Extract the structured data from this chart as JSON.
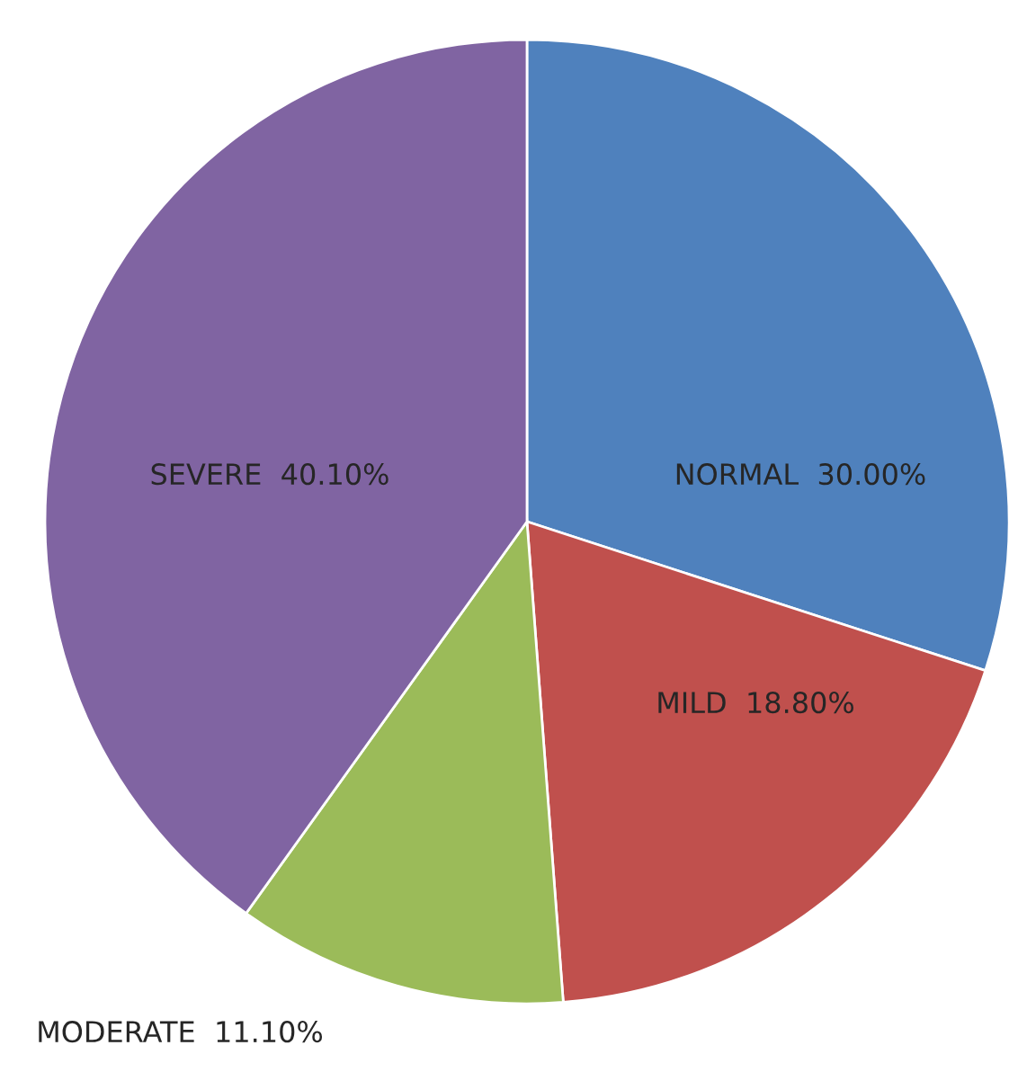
{
  "chart_data": {
    "type": "pie",
    "categories": [
      "NORMAL",
      "MILD",
      "MODERATE",
      "SEVERE"
    ],
    "values": [
      30.0,
      18.8,
      11.1,
      40.1
    ],
    "value_labels": [
      "30.00%",
      "18.80%",
      "11.10%",
      "40.10%"
    ],
    "colors": [
      "#4f81bd",
      "#c0504d",
      "#9bbb59",
      "#8064a2"
    ],
    "legend": false
  }
}
